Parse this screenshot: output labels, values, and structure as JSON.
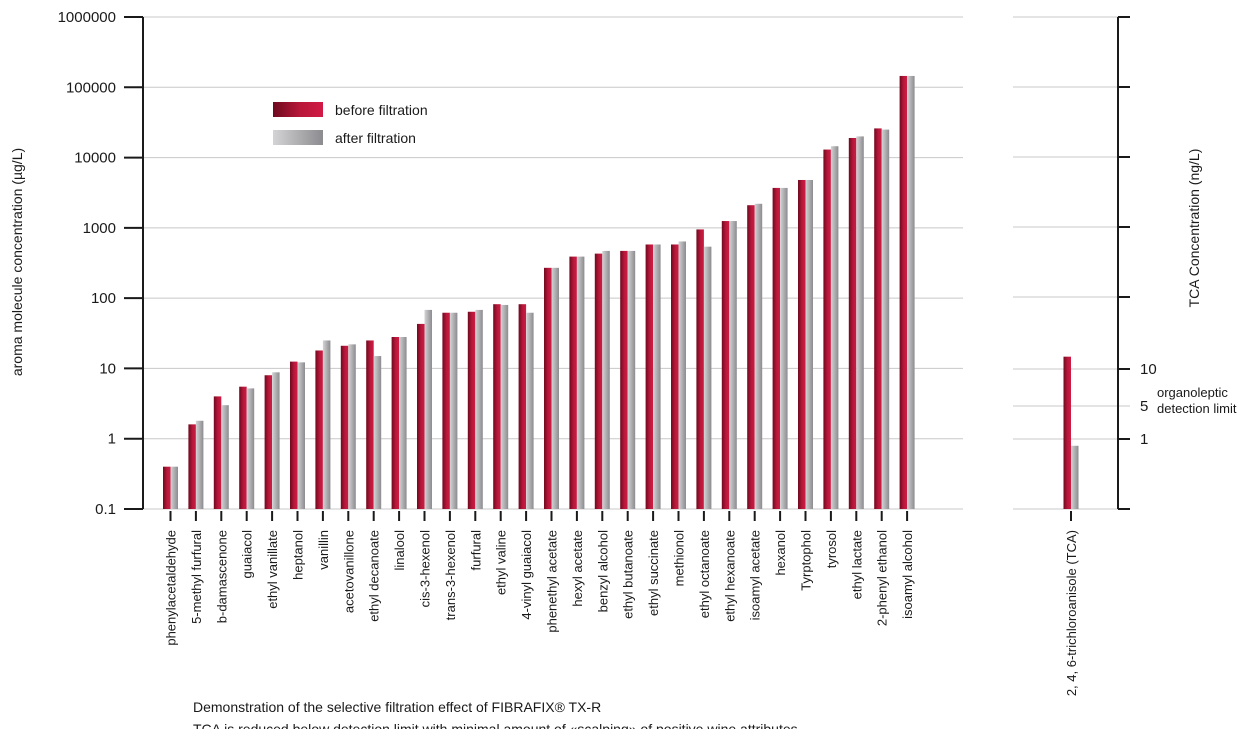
{
  "chart_data": [
    {
      "type": "bar",
      "scale": "log",
      "ylabel": "aroma molecule concentration (µg/L)",
      "ylim": [
        0.1,
        1000000
      ],
      "yticks": [
        "0.1",
        "1",
        "10",
        "100",
        "1000",
        "10000",
        "100000",
        "1000000"
      ],
      "grid": true,
      "legend_position": "top-left",
      "colors": {
        "before": "#a1122e",
        "after": "#a3a3a6"
      },
      "categories": [
        "phenylacetaldehyde",
        "5-methyl furfural",
        "b-damascenone",
        "guaiacol",
        "ethyl vanillate",
        "heptanol",
        "vanillin",
        "acetovanillone",
        "ethyl decanoate",
        "linalool",
        "cis-3-hexenol",
        "trans-3-hexenol",
        "furfural",
        "ethyl valine",
        "4-vinyl guaiacol",
        "phenethyl acetate",
        "hexyl acetate",
        "benzyl alcohol",
        "ethyl butanoate",
        "ethyl succinate",
        "methionol",
        "ethyl octanoate",
        "ethyl hexanoate",
        "isoamyl acetate",
        "hexanol",
        "Tyrptophol",
        "tyrosol",
        "ethyl lactate",
        "2-phenyl ethanol",
        "isoamyl alcohol"
      ],
      "series": [
        {
          "name": "before filtration",
          "values": [
            0.4,
            1.6,
            4,
            5.5,
            8,
            12.5,
            18,
            21,
            25,
            28,
            43,
            62,
            64,
            82,
            82,
            270,
            390,
            430,
            470,
            580,
            580,
            950,
            1250,
            2100,
            3700,
            4800,
            13000,
            19000,
            26000,
            145000
          ]
        },
        {
          "name": "after filtration",
          "values": [
            0.4,
            1.8,
            3,
            5.2,
            8.8,
            12.2,
            25,
            22,
            15,
            28,
            68,
            62,
            68,
            80,
            62,
            270,
            390,
            470,
            470,
            580,
            640,
            540,
            1250,
            2200,
            3700,
            4800,
            14500,
            20000,
            25000,
            145000
          ]
        }
      ]
    },
    {
      "type": "bar",
      "ylabel": "TCA Concentration (ng/L)",
      "yticks": [
        "1",
        "5",
        "10"
      ],
      "annotation": [
        "organoleptic",
        "detection limit"
      ],
      "categories": [
        "2, 4, 6-trichloroanisole (TCA)"
      ],
      "series": [
        {
          "name": "before filtration",
          "values": [
            15
          ]
        },
        {
          "name": "after filtration",
          "values": [
            0.8
          ]
        }
      ]
    }
  ],
  "legend": {
    "before": "before filtration",
    "after": "after filtration"
  },
  "caption": {
    "line1": "Demonstration of the selective filtration effect of FIBRAFIX® TX-R",
    "line2": "TCA is reduced below detection limit with minimal amount of «scalping» of positive wine attributes"
  }
}
